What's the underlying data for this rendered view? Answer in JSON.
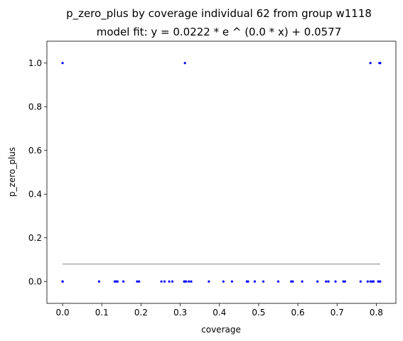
{
  "chart_data": {
    "type": "scatter",
    "title": "p_zero_plus by coverage individual 62 from group w1118",
    "subtitle": "model fit: y = 0.0222 * e ^ (0.0 * x) + 0.0577",
    "xlabel": "coverage",
    "ylabel": "p_zero_plus",
    "xlim": [
      -0.04,
      0.85
    ],
    "ylim": [
      -0.1,
      1.1
    ],
    "xticks": [
      "0.0",
      "0.1",
      "0.2",
      "0.3",
      "0.4",
      "0.5",
      "0.6",
      "0.7",
      "0.8"
    ],
    "yticks": [
      "0.0",
      "0.2",
      "0.4",
      "0.6",
      "0.8",
      "1.0"
    ],
    "grid": false,
    "series": [
      {
        "kind": "points",
        "color": "#0000ff",
        "x": [
          0.0,
          0.0,
          0.0,
          0.093,
          0.133,
          0.137,
          0.14,
          0.155,
          0.19,
          0.195,
          0.252,
          0.26,
          0.272,
          0.28,
          0.31,
          0.312,
          0.315,
          0.322,
          0.328,
          0.373,
          0.41,
          0.432,
          0.47,
          0.473,
          0.49,
          0.512,
          0.55,
          0.583,
          0.587,
          0.611,
          0.65,
          0.672,
          0.678,
          0.696,
          0.716,
          0.72,
          0.76,
          0.778,
          0.785,
          0.79,
          0.793,
          0.805,
          0.808,
          0.81,
          0.0,
          0.312,
          0.785,
          0.808,
          0.81
        ],
        "y": [
          0,
          0,
          0,
          0,
          0,
          0,
          0,
          0,
          0,
          0,
          0,
          0,
          0,
          0,
          0,
          0,
          0,
          0,
          0,
          0,
          0,
          0,
          0,
          0,
          0,
          0,
          0,
          0,
          0,
          0,
          0,
          0,
          0,
          0,
          0,
          0,
          0,
          0,
          0,
          0,
          0,
          0,
          0,
          0,
          1,
          1,
          1,
          1,
          1
        ]
      },
      {
        "kind": "fit-line",
        "color": "#a9a9a9",
        "x": [
          0.0,
          0.81
        ],
        "y": [
          0.0799,
          0.0799
        ]
      }
    ]
  }
}
